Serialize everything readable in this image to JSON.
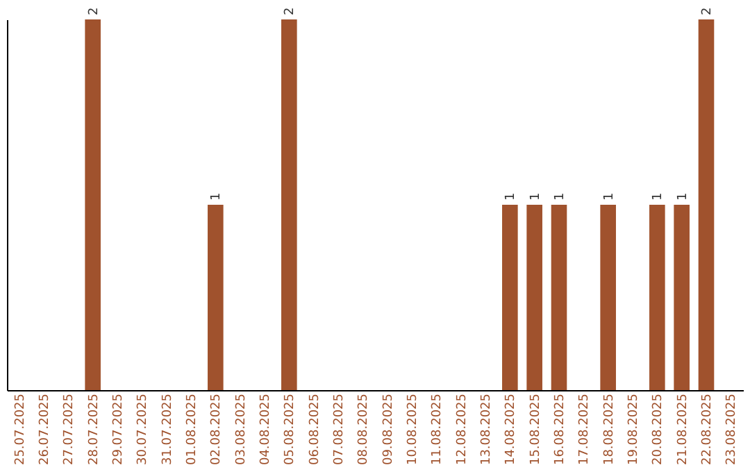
{
  "chart_data": {
    "type": "bar",
    "categories": [
      "25.07.2025",
      "26.07.2025",
      "27.07.2025",
      "28.07.2025",
      "29.07.2025",
      "30.07.2025",
      "31.07.2025",
      "01.08.2025",
      "02.08.2025",
      "03.08.2025",
      "04.08.2025",
      "05.08.2025",
      "06.08.2025",
      "07.08.2025",
      "08.08.2025",
      "09.08.2025",
      "10.08.2025",
      "11.08.2025",
      "12.08.2025",
      "13.08.2025",
      "14.08.2025",
      "15.08.2025",
      "16.08.2025",
      "17.08.2025",
      "18.08.2025",
      "19.08.2025",
      "20.08.2025",
      "21.08.2025",
      "22.08.2025",
      "23.08.2025"
    ],
    "values": [
      0,
      0,
      0,
      2,
      0,
      0,
      0,
      0,
      1,
      0,
      0,
      2,
      0,
      0,
      0,
      0,
      0,
      0,
      0,
      0,
      1,
      1,
      1,
      0,
      1,
      0,
      1,
      1,
      2,
      0
    ],
    "value_labels": [
      null,
      null,
      null,
      "2",
      null,
      null,
      null,
      null,
      "1",
      null,
      null,
      "2",
      null,
      null,
      null,
      null,
      null,
      null,
      null,
      null,
      "1",
      "1",
      "1",
      null,
      "1",
      null,
      "1",
      "1",
      "2",
      null
    ],
    "color": "#a0522d",
    "tick_labels": "x",
    "grid": false
  }
}
